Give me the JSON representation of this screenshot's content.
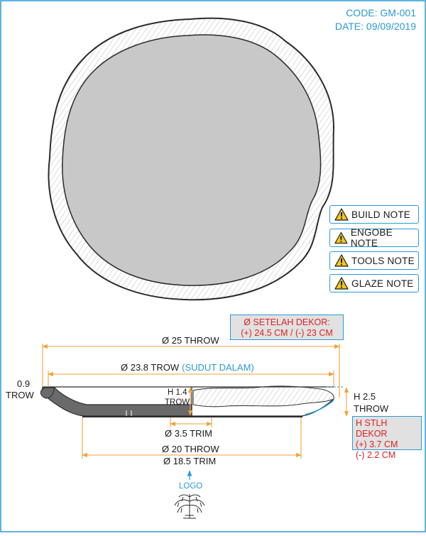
{
  "header": {
    "code": "CODE: GM-001",
    "date": "DATE: 09/09/2019"
  },
  "notes": [
    {
      "label": "BUILD NOTE",
      "icon": "warning-icon"
    },
    {
      "label": "ENGOBE NOTE",
      "icon": "warning-icon"
    },
    {
      "label": "TOOLS NOTE",
      "icon": "warning-icon"
    },
    {
      "label": "GLAZE NOTE",
      "icon": "warning-icon"
    }
  ],
  "dimensions": {
    "outer_diameter": "Ø 25 THROW",
    "inner_diameter_a": "Ø 23.8 TROW",
    "inner_diameter_b": "(SUDUT DALAM)",
    "rim_thickness_1": "0.9",
    "rim_thickness_2": "TROW",
    "bottom_height_1": "H 1.4",
    "bottom_height_2": "TROW",
    "total_height_1": "H 2.5",
    "total_height_2": "THROW",
    "foot_trim": "Ø 3.5 TRIM",
    "foot_throw": "Ø 20 THROW",
    "foot_outer_trim": "Ø 18.5 TRIM"
  },
  "callout_diameter": {
    "line1": "Ø SETELAH DEKOR:",
    "line2": "(+) 24.5 CM / (-) 23 CM"
  },
  "callout_height": {
    "line1": "H STLH DEKOR",
    "line2": "(+) 3.7 CM",
    "line3": "(-) 2.2 CM"
  },
  "logo": {
    "label": "LOGO"
  },
  "colors": {
    "accent": "#2a9ad6",
    "dimension": "#f0a23a",
    "alert": "#e02020",
    "plate_fill": "#c8c8c8",
    "section_fill": "#6a6a6a",
    "warning": "#f5c518"
  }
}
